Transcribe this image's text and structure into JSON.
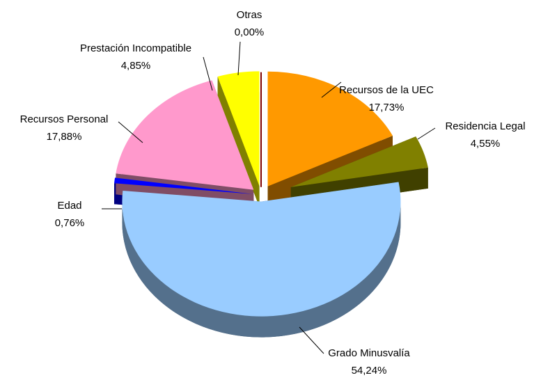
{
  "chart_data": {
    "type": "pie",
    "categories": [
      "Otras",
      "Recursos de la UEC",
      "Residencia Legal",
      "Grado Minusvalía",
      "Edad",
      "Recursos Personal",
      "Prestación Incompatible"
    ],
    "values": [
      0.0,
      17.73,
      4.55,
      54.24,
      0.76,
      17.88,
      4.85
    ],
    "value_labels": [
      "0,00%",
      "17,73%",
      "4,55%",
      "54,24%",
      "0,76%",
      "17,88%",
      "4,85%"
    ],
    "colors": [
      "#800000",
      "#ff9900",
      "#808000",
      "#99ccff",
      "#0000ff",
      "#ff99cc",
      "#ffff00"
    ]
  }
}
